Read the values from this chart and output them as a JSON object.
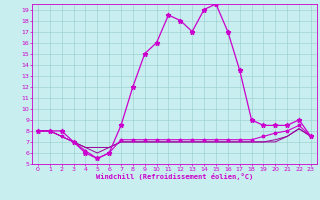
{
  "xlabel": "Windchill (Refroidissement éolien,°C)",
  "background_color": "#c8eef0",
  "grid_color": "#99cccc",
  "line_color": "#cc00cc",
  "line_color2": "#990099",
  "xlim": [
    -0.5,
    23.5
  ],
  "ylim": [
    5,
    19.5
  ],
  "yticks": [
    5,
    6,
    7,
    8,
    9,
    10,
    11,
    12,
    13,
    14,
    15,
    16,
    17,
    18,
    19
  ],
  "xticks": [
    0,
    1,
    2,
    3,
    4,
    5,
    6,
    7,
    8,
    9,
    10,
    11,
    12,
    13,
    14,
    15,
    16,
    17,
    18,
    19,
    20,
    21,
    22,
    23
  ],
  "series1_x": [
    0,
    1,
    2,
    3,
    4,
    5,
    6,
    7,
    8,
    9,
    10,
    11,
    12,
    13,
    14,
    15,
    16,
    17,
    18,
    19,
    20,
    21,
    22,
    23
  ],
  "series1_y": [
    8,
    8,
    8,
    7,
    6,
    5.5,
    6,
    8.5,
    12,
    15,
    16,
    18.5,
    18,
    17,
    19,
    19.5,
    17,
    13.5,
    9,
    8.5,
    8.5,
    8.5,
    9,
    7.5
  ],
  "series2_x": [
    0,
    1,
    2,
    3,
    4,
    5,
    6,
    7,
    8,
    9,
    10,
    11,
    12,
    13,
    14,
    15,
    16,
    17,
    18,
    19,
    20,
    21,
    22,
    23
  ],
  "series2_y": [
    8,
    8,
    7.5,
    7.0,
    6.2,
    5.5,
    6.0,
    7.2,
    7.2,
    7.2,
    7.2,
    7.2,
    7.2,
    7.2,
    7.2,
    7.2,
    7.2,
    7.2,
    7.2,
    7.5,
    7.8,
    8.0,
    8.5,
    7.5
  ],
  "series3_x": [
    0,
    1,
    2,
    3,
    4,
    5,
    6,
    7,
    8,
    9,
    10,
    11,
    12,
    13,
    14,
    15,
    16,
    17,
    18,
    19,
    20,
    21,
    22,
    23
  ],
  "series3_y": [
    8,
    8,
    7.5,
    7.0,
    6.5,
    6.0,
    6.5,
    7.0,
    7.0,
    7.0,
    7.0,
    7.0,
    7.0,
    7.0,
    7.0,
    7.0,
    7.0,
    7.0,
    7.0,
    7.0,
    7.2,
    7.5,
    8.2,
    7.5
  ],
  "series4_x": [
    0,
    1,
    2,
    3,
    4,
    5,
    6,
    7,
    8,
    9,
    10,
    11,
    12,
    13,
    14,
    15,
    16,
    17,
    18,
    19,
    20,
    21,
    22,
    23
  ],
  "series4_y": [
    8,
    8,
    7.5,
    7.0,
    6.5,
    6.5,
    6.5,
    7.0,
    7.0,
    7.0,
    7.0,
    7.0,
    7.0,
    7.0,
    7.0,
    7.0,
    7.0,
    7.0,
    7.0,
    7.0,
    7.0,
    7.5,
    8.2,
    7.5
  ]
}
